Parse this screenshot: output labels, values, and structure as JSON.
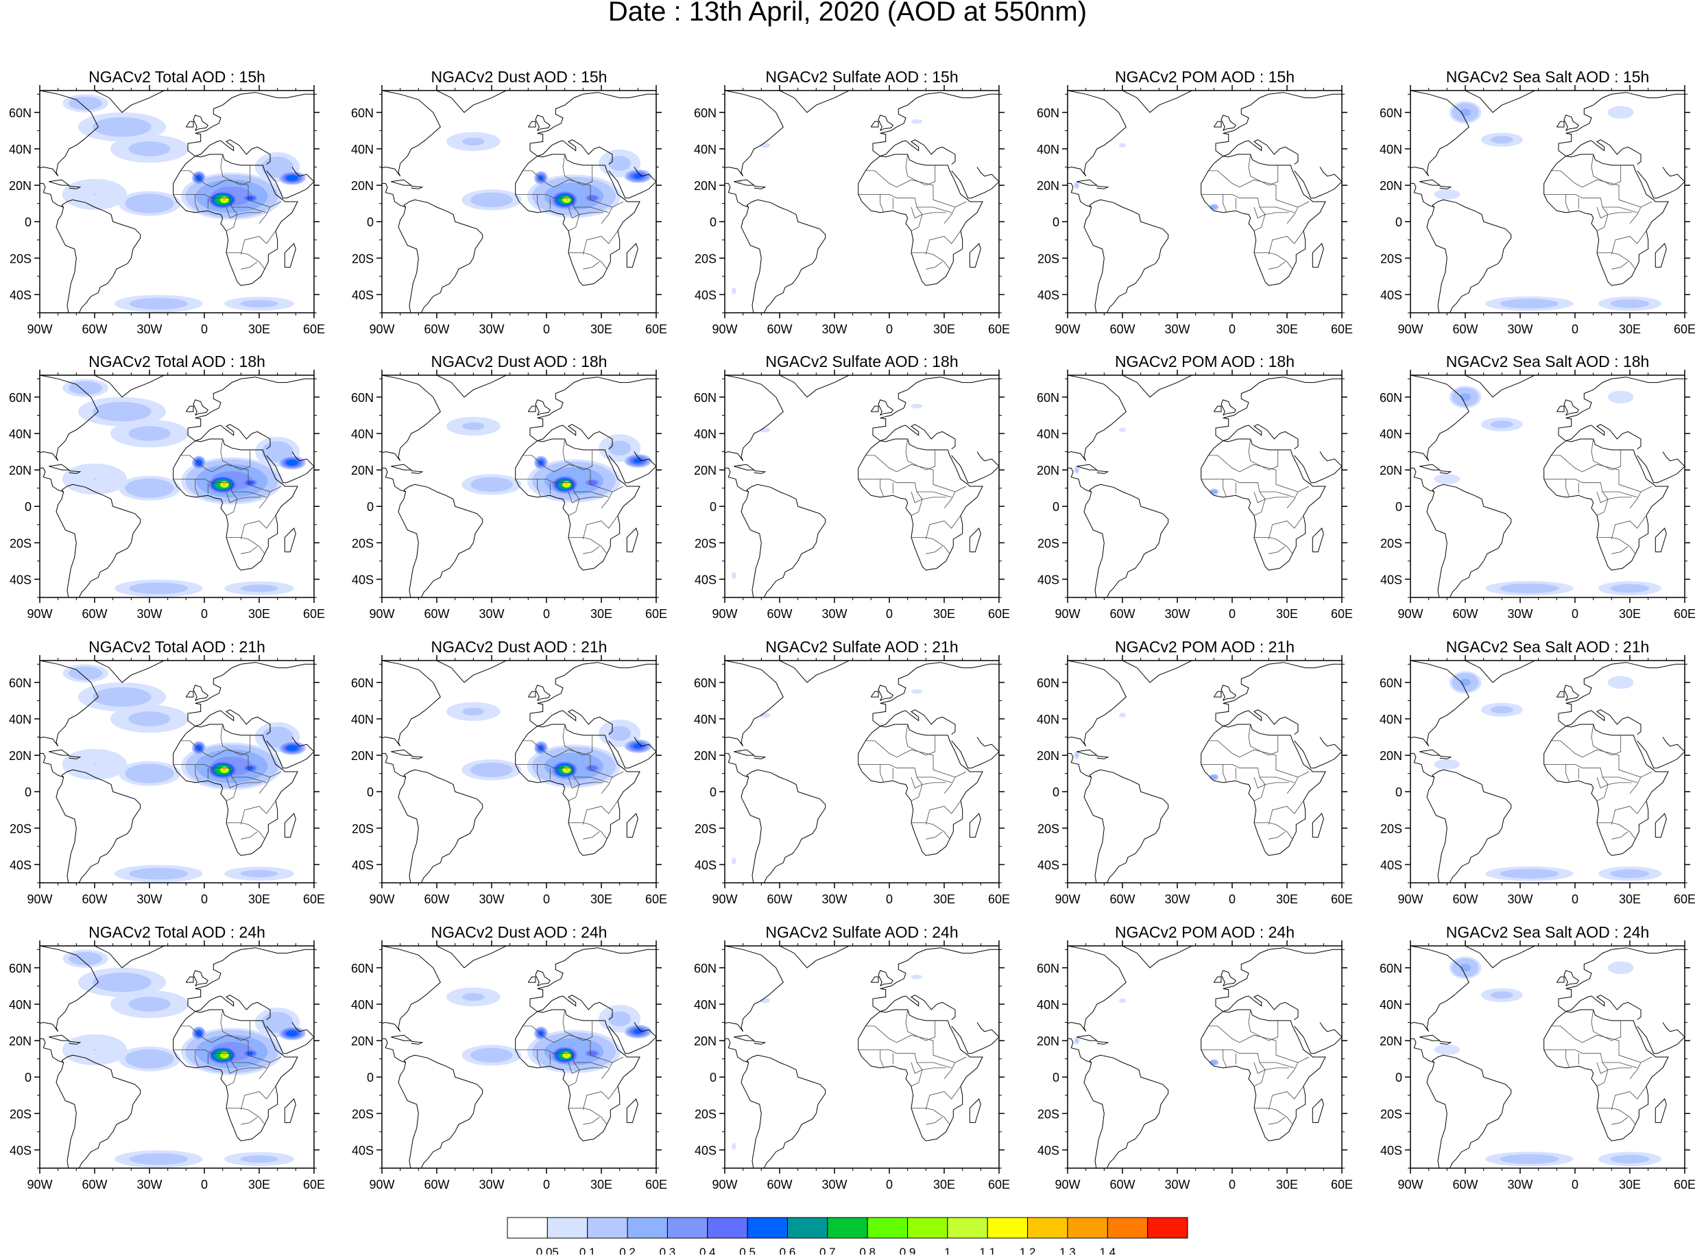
{
  "title": "Date : 13th April, 2020 (AOD at 550nm)",
  "panel_titles": [
    [
      "NGACv2 Total AOD : 15h",
      "NGACv2 Dust AOD : 15h",
      "NGACv2 Sulfate AOD : 15h",
      "NGACv2 POM AOD : 15h",
      "NGACv2 Sea Salt AOD : 15h"
    ],
    [
      "NGACv2 Total AOD : 18h",
      "NGACv2 Dust AOD : 18h",
      "NGACv2 Sulfate AOD : 18h",
      "NGACv2 POM AOD : 18h",
      "NGACv2 Sea Salt AOD : 18h"
    ],
    [
      "NGACv2 Total AOD : 21h",
      "NGACv2 Dust AOD : 21h",
      "NGACv2 Sulfate AOD : 21h",
      "NGACv2 POM AOD : 21h",
      "NGACv2 Sea Salt AOD : 21h"
    ],
    [
      "NGACv2 Total AOD : 24h",
      "NGACv2 Dust AOD : 24h",
      "NGACv2 Sulfate AOD : 24h",
      "NGACv2 POM AOD : 24h",
      "NGACv2 Sea Salt  AOD : 24h"
    ]
  ],
  "lat_labels": [
    "60N",
    "40N",
    "20N",
    "0",
    "20S",
    "40S"
  ],
  "lat_values": [
    60,
    40,
    20,
    0,
    -20,
    -40
  ],
  "lon_labels": [
    "90W",
    "60W",
    "30W",
    "0",
    "30E",
    "60E"
  ],
  "lon_values": [
    -90,
    -60,
    -30,
    0,
    30,
    60
  ],
  "lat_range": [
    -50,
    72
  ],
  "lon_range": [
    -90,
    60
  ],
  "colorbar": {
    "labels": [
      "0.05",
      "0.1",
      "0.2",
      "0.3",
      "0.4",
      "0.5",
      "0.6",
      "0.7",
      "0.8",
      "0.9",
      "1",
      "1.1",
      "1.2",
      "1.3",
      "1.4"
    ],
    "colors": [
      "#ffffff",
      "#d6e2ff",
      "#b5c9ff",
      "#8eb2ff",
      "#7f96ff",
      "#6370ff",
      "#0063ff",
      "#009696",
      "#00c633",
      "#63ff00",
      "#96ff00",
      "#c6ff33",
      "#ffff00",
      "#ffc600",
      "#ffa000",
      "#ff7c00",
      "#ff1900"
    ]
  },
  "overlays": {
    "species": [
      "total",
      "dust",
      "sulfate",
      "pom",
      "seasalt"
    ]
  }
}
